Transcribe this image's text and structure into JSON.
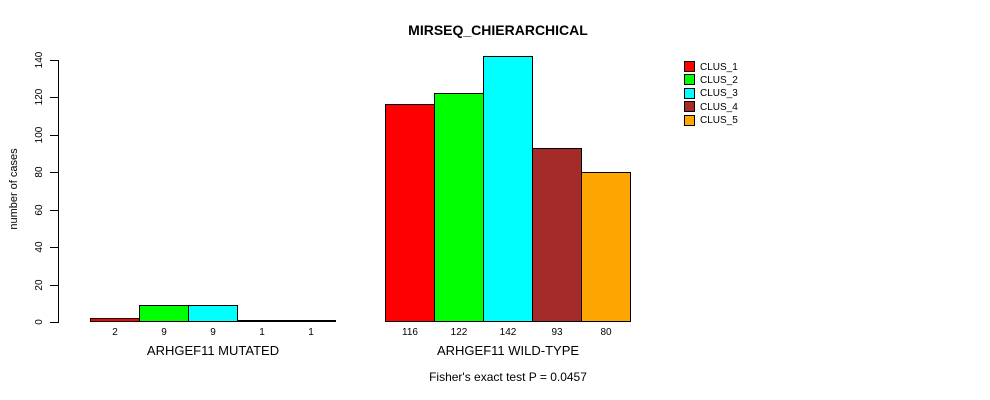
{
  "chart_data": {
    "type": "bar",
    "title": "MIRSEQ_CHIERARCHICAL",
    "ylabel": "number of cases",
    "xlabel": "",
    "ylim": [
      0,
      140
    ],
    "yticks": [
      0,
      20,
      40,
      60,
      80,
      100,
      120,
      140
    ],
    "grid": false,
    "legend_position": "top-right",
    "categories": [
      "ARHGEF11 MUTATED",
      "ARHGEF11 WILD-TYPE"
    ],
    "series": [
      {
        "name": "CLUS_1",
        "color": "#FF0000",
        "values": [
          2,
          116
        ]
      },
      {
        "name": "CLUS_2",
        "color": "#00FF00",
        "values": [
          9,
          122
        ]
      },
      {
        "name": "CLUS_3",
        "color": "#00FFFF",
        "values": [
          9,
          142
        ]
      },
      {
        "name": "CLUS_4",
        "color": "#A52A2A",
        "values": [
          1,
          93
        ]
      },
      {
        "name": "CLUS_5",
        "color": "#FFA500",
        "values": [
          1,
          80
        ]
      }
    ],
    "bar_value_labels": [
      [
        "2",
        "9",
        "9",
        "1",
        "1"
      ],
      [
        "116",
        "122",
        "142",
        "93",
        "80"
      ]
    ],
    "annotation": "Fisher's exact test P = 0.0457"
  }
}
